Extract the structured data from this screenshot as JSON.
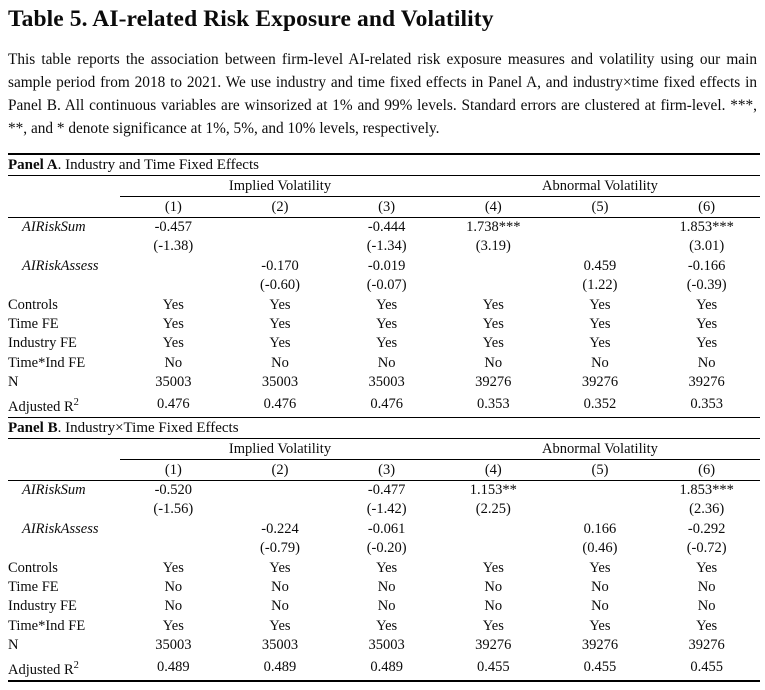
{
  "page": {
    "title": "Table 5. AI-related Risk Exposure and Volatility",
    "description": "This table reports the association between firm-level AI-related risk exposure measures and volatility using our main sample period from 2018 to 2021.  We use industry and time fixed effects in Panel A, and industry×time fixed effects in Panel B. All continuous variables are winsorized at 1% and 99% levels. Standard errors are clustered at firm-level.  ***, **, and * denote significance at 1%, 5%, and 10% levels, respectively."
  },
  "table": {
    "column_groups": [
      "Implied Volatility",
      "Abnormal Volatility"
    ],
    "column_numbers": [
      "(1)",
      "(2)",
      "(3)",
      "(4)",
      "(5)",
      "(6)"
    ],
    "panels": [
      {
        "label": "Panel A",
        "title_rest": ". Industry and Time Fixed Effects",
        "rows": [
          {
            "label": "AIRiskSum",
            "italic": true,
            "cells": [
              "-0.457",
              "",
              "-0.444",
              "1.738***",
              "",
              "1.853***"
            ]
          },
          {
            "label": "",
            "cells": [
              "(-1.38)",
              "",
              "(-1.34)",
              "(3.19)",
              "",
              "(3.01)"
            ]
          },
          {
            "label": "AIRiskAssess",
            "italic": true,
            "cells": [
              "",
              "-0.170",
              "-0.019",
              "",
              "0.459",
              "-0.166"
            ]
          },
          {
            "label": "",
            "cells": [
              "",
              "(-0.60)",
              "(-0.07)",
              "",
              "(1.22)",
              "(-0.39)"
            ]
          },
          {
            "label": "Controls",
            "cells": [
              "Yes",
              "Yes",
              "Yes",
              "Yes",
              "Yes",
              "Yes"
            ]
          },
          {
            "label": "Time FE",
            "cells": [
              "Yes",
              "Yes",
              "Yes",
              "Yes",
              "Yes",
              "Yes"
            ]
          },
          {
            "label": "Industry FE",
            "cells": [
              "Yes",
              "Yes",
              "Yes",
              "Yes",
              "Yes",
              "Yes"
            ]
          },
          {
            "label": "Time*Ind FE",
            "cells": [
              "No",
              "No",
              "No",
              "No",
              "No",
              "No"
            ]
          },
          {
            "label": "N",
            "cells": [
              "35003",
              "35003",
              "35003",
              "39276",
              "39276",
              "39276"
            ]
          },
          {
            "label": "Adjusted R",
            "label_sup": "2",
            "cells": [
              "0.476",
              "0.476",
              "0.476",
              "0.353",
              "0.352",
              "0.353"
            ]
          }
        ]
      },
      {
        "label": "Panel B",
        "title_rest": ". Industry×Time Fixed Effects",
        "rows": [
          {
            "label": "AIRiskSum",
            "italic": true,
            "cells": [
              "-0.520",
              "",
              "-0.477",
              "1.153**",
              "",
              "1.853***"
            ]
          },
          {
            "label": "",
            "cells": [
              "(-1.56)",
              "",
              "(-1.42)",
              "(2.25)",
              "",
              "(2.36)"
            ]
          },
          {
            "label": "AIRiskAssess",
            "italic": true,
            "cells": [
              "",
              "-0.224",
              "-0.061",
              "",
              "0.166",
              "-0.292"
            ]
          },
          {
            "label": "",
            "cells": [
              "",
              "(-0.79)",
              "(-0.20)",
              "",
              "(0.46)",
              "(-0.72)"
            ]
          },
          {
            "label": "Controls",
            "cells": [
              "Yes",
              "Yes",
              "Yes",
              "Yes",
              "Yes",
              "Yes"
            ]
          },
          {
            "label": "Time FE",
            "cells": [
              "No",
              "No",
              "No",
              "No",
              "No",
              "No"
            ]
          },
          {
            "label": "Industry FE",
            "cells": [
              "No",
              "No",
              "No",
              "No",
              "No",
              "No"
            ]
          },
          {
            "label": "Time*Ind FE",
            "cells": [
              "Yes",
              "Yes",
              "Yes",
              "Yes",
              "Yes",
              "Yes"
            ]
          },
          {
            "label": "N",
            "cells": [
              "35003",
              "35003",
              "35003",
              "39276",
              "39276",
              "39276"
            ]
          },
          {
            "label": "Adjusted R",
            "label_sup": "2",
            "cells": [
              "0.489",
              "0.489",
              "0.489",
              "0.455",
              "0.455",
              "0.455"
            ]
          }
        ]
      }
    ]
  }
}
